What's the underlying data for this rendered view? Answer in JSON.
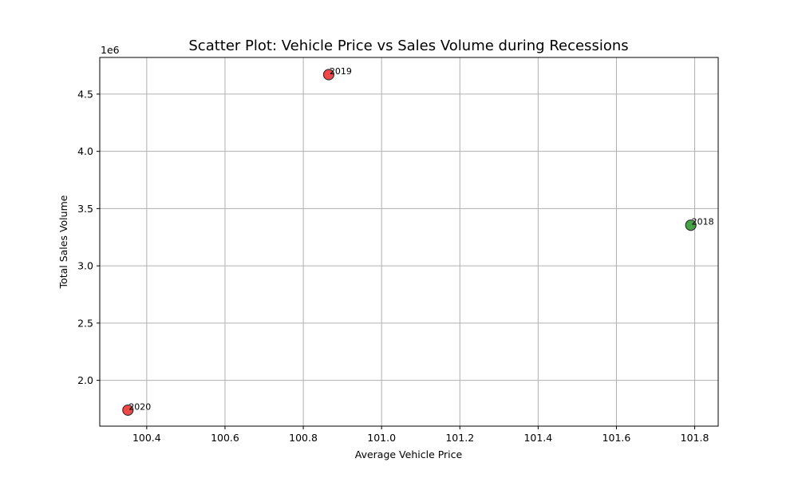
{
  "chart_data": {
    "type": "scatter",
    "title": "Scatter Plot: Vehicle Price vs Sales Volume during Recessions",
    "xlabel": "Average Vehicle Price",
    "ylabel": "Total Sales Volume",
    "y_offset_label": "1e6",
    "xlim": [
      100.28,
      101.86
    ],
    "ylim": [
      1.6,
      4.82
    ],
    "y_scale_factor": 1000000,
    "grid": true,
    "x_ticks": [
      100.4,
      100.6,
      100.8,
      101.0,
      101.2,
      101.4,
      101.6,
      101.8
    ],
    "x_tick_labels": [
      "100.4",
      "100.6",
      "100.8",
      "101.0",
      "101.2",
      "101.4",
      "101.6",
      "101.8"
    ],
    "y_ticks": [
      2.0,
      2.5,
      3.0,
      3.5,
      4.0,
      4.5
    ],
    "y_tick_labels": [
      "2.0",
      "2.5",
      "3.0",
      "3.5",
      "4.0",
      "4.5"
    ],
    "points": [
      {
        "label": "2019",
        "x": 100.865,
        "y": 4.67,
        "color": "#ee3333"
      },
      {
        "label": "2018",
        "x": 101.79,
        "y": 3.355,
        "color": "#339933"
      },
      {
        "label": "2020",
        "x": 100.352,
        "y": 1.74,
        "color": "#ee3333"
      }
    ]
  }
}
